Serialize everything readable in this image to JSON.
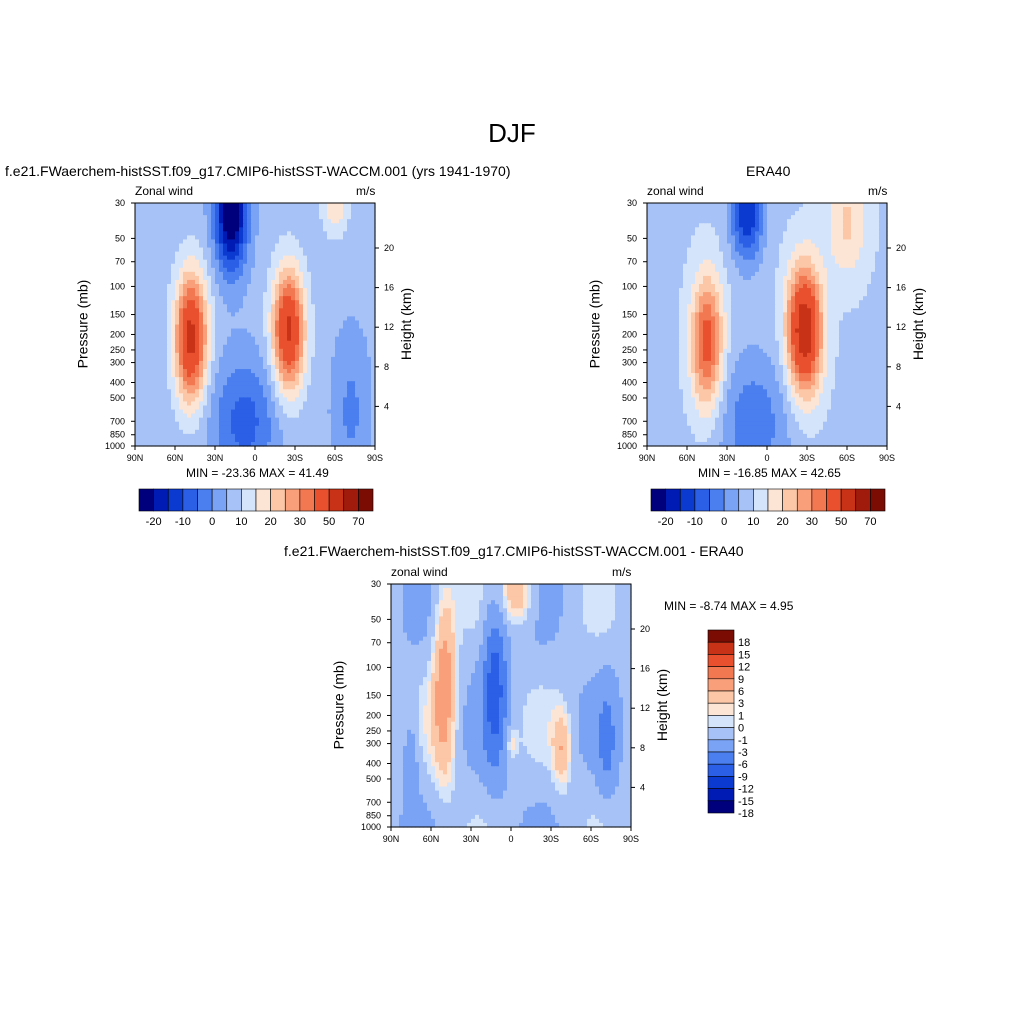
{
  "page_title": "DJF",
  "colors": {
    "div": [
      "#00007d",
      "#001ab4",
      "#0a3ad0",
      "#2a5fe6",
      "#4b7ff0",
      "#7aa2f5",
      "#a7c2f6",
      "#d4e4fa",
      "#fde5d6",
      "#fcc7a6",
      "#f9a07a",
      "#f27852",
      "#e8502e",
      "#c83216",
      "#a01b0b",
      "#7a0c03"
    ],
    "diff": [
      "#00007d",
      "#001ab4",
      "#0a3ad0",
      "#2a5fe6",
      "#4b7ff0",
      "#7aa2f5",
      "#a7c2f6",
      "#d4e4fa",
      "#fde5d6",
      "#fcc7a6",
      "#f9a07a",
      "#f27852",
      "#e8502e",
      "#c83216",
      "#7a0c03"
    ]
  },
  "panel1": {
    "title": "f.e21.FWaerchem-histSST.f09_g17.CMIP6-histSST-WACCM.001 (yrs 1941-1970)",
    "left_label": "Zonal wind",
    "right_label": "m/s",
    "minmax": "MIN = -23.36  MAX =  41.49",
    "colorbar_labels": [
      "-20",
      "-10",
      "0",
      "10",
      "20",
      "30",
      "50",
      "70"
    ]
  },
  "panel2": {
    "title": "ERA40",
    "left_label": "zonal wind",
    "right_label": "m/s",
    "minmax": "MIN = -16.85  MAX =  42.65",
    "colorbar_labels": [
      "-20",
      "-10",
      "0",
      "10",
      "20",
      "30",
      "50",
      "70"
    ]
  },
  "panel3": {
    "title": "f.e21.FWaerchem-histSST.f09_g17.CMIP6-histSST-WACCM.001 - ERA40",
    "left_label": "zonal wind",
    "right_label": "m/s",
    "minmax": "MIN =  -8.74  MAX =   4.95",
    "colorbar_labels": [
      "18",
      "15",
      "12",
      "9",
      "6",
      "3",
      "1",
      "0",
      "-1",
      "-3",
      "-6",
      "-9",
      "-12",
      "-15",
      "-18"
    ]
  },
  "axes": {
    "ylabel": "Pressure (mb)",
    "y2label": "Height (km)",
    "pressure_ticks": [
      "30",
      "50",
      "70",
      "100",
      "150",
      "200",
      "250",
      "300",
      "400",
      "500",
      "700",
      "850",
      "1000"
    ],
    "height_ticks": [
      "20",
      "16",
      "12",
      "8",
      "4"
    ],
    "lat_ticks": [
      "90N",
      "60N",
      "30N",
      "0",
      "30S",
      "60S",
      "90S"
    ]
  },
  "chart_data": [
    {
      "type": "heatmap",
      "title": "f.e21.FWaerchem-histSST.f09_g17.CMIP6-histSST-WACCM.001 (yrs 1941-1970)",
      "xlabel": "",
      "ylabel": "Pressure (mb)",
      "y2label": "Height (km)",
      "x_ticks": [
        "90N",
        "60N",
        "30N",
        "0",
        "30S",
        "60S",
        "90S"
      ],
      "y_ticks": [
        30,
        50,
        70,
        100,
        150,
        200,
        250,
        300,
        400,
        500,
        700,
        850,
        1000
      ],
      "y_log": true,
      "ylim": [
        1000,
        30
      ],
      "xlim": [
        -90,
        90
      ],
      "min": -23.36,
      "max": 41.49,
      "features": [
        {
          "lat": -24,
          "p": 190,
          "value": 38
        },
        {
          "lat": 48,
          "p": 210,
          "value": 40
        },
        {
          "lat": 18,
          "p": 40,
          "value": -23
        },
        {
          "lat": 5,
          "p": 700,
          "value": -10
        }
      ]
    },
    {
      "type": "heatmap",
      "title": "ERA40",
      "ylabel": "Pressure (mb)",
      "y2label": "Height (km)",
      "x_ticks": [
        "90N",
        "60N",
        "30N",
        "0",
        "30S",
        "60S",
        "90S"
      ],
      "y_ticks": [
        30,
        50,
        70,
        100,
        150,
        200,
        250,
        300,
        400,
        500,
        700,
        850,
        1000
      ],
      "y_log": true,
      "ylim": [
        1000,
        30
      ],
      "xlim": [
        -90,
        90
      ],
      "min": -16.85,
      "max": 42.65,
      "features": [
        {
          "lat": -27,
          "p": 190,
          "value": 42
        },
        {
          "lat": 45,
          "p": 220,
          "value": 30
        },
        {
          "lat": 15,
          "p": 35,
          "value": -16
        }
      ]
    },
    {
      "type": "heatmap",
      "title": "f.e21.FWaerchem-histSST.f09_g17.CMIP6-histSST-WACCM.001 - ERA40",
      "ylabel": "Pressure (mb)",
      "y2label": "Height (km)",
      "x_ticks": [
        "90N",
        "60N",
        "30N",
        "0",
        "30S",
        "60S",
        "90S"
      ],
      "y_ticks": [
        30,
        50,
        70,
        100,
        150,
        200,
        250,
        300,
        400,
        500,
        700,
        850,
        1000
      ],
      "y_log": true,
      "ylim": [
        1000,
        30
      ],
      "xlim": [
        -90,
        90
      ],
      "min": -8.74,
      "max": 4.95,
      "features": [
        {
          "lat": 15,
          "p": 100,
          "value": -8
        },
        {
          "lat": 50,
          "p": 100,
          "value": 4
        },
        {
          "lat": -5,
          "p": 35,
          "value": 3
        },
        {
          "lat": -40,
          "p": 300,
          "value": 3
        },
        {
          "lat": 0,
          "p": 300,
          "value": 2
        }
      ]
    }
  ]
}
